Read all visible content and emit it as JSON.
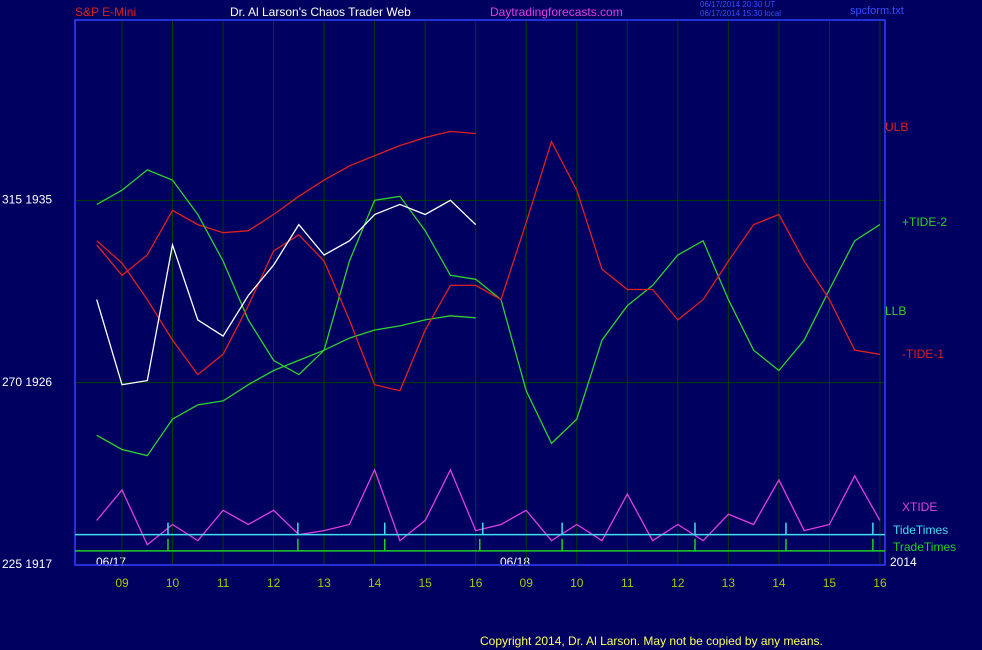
{
  "chart_data": {
    "type": "line",
    "title": "Dr. Al Larson's Chaos Trader Web",
    "instrument": "S&P E-Mini",
    "website": "Daytradingforecasts.com",
    "timestamps": [
      "06/17/2014 20:30 UT",
      "06/17/2014 15:30 local"
    ],
    "file_name": "spcform.txt",
    "copyright": "Copyright 2014, Dr. Al Larson. May not be copied by any means.",
    "date_labels": [
      "06/17",
      "06/18",
      "2014"
    ],
    "xlim": [
      8.07,
      24.1
    ],
    "xticks": [
      {
        "value": 9,
        "label": "09"
      },
      10,
      11,
      12,
      13,
      14,
      15,
      16,
      {
        "value": 17,
        "label": "09"
      },
      {
        "value": 18,
        "label": "10"
      },
      {
        "value": 19,
        "label": "11"
      },
      {
        "value": 20,
        "label": "12"
      },
      {
        "value": 21,
        "label": "13"
      },
      {
        "value": 22,
        "label": "14"
      },
      {
        "value": 23,
        "label": "15"
      },
      {
        "value": 24,
        "label": "16"
      }
    ],
    "ylim": [
      1917,
      1943.9
    ],
    "yticks": [
      {
        "value": 1917,
        "label": "225  1917"
      },
      {
        "value": 1926,
        "label": "270  1926"
      },
      {
        "value": 1935,
        "label": "315  1935"
      }
    ],
    "grid": true,
    "x": [
      8.5,
      9,
      9.5,
      10,
      10.5,
      11,
      11.5,
      12,
      12.5,
      13,
      13.5,
      14,
      14.5,
      15,
      15.5,
      16,
      16.5,
      17,
      17.5,
      18,
      18.5,
      19,
      19.5,
      20,
      20.5,
      21,
      21.5,
      22,
      22.5,
      23,
      23.5,
      24
    ],
    "series": [
      {
        "name": "ULB",
        "color": "#e02020",
        "values": [
          1932.8,
          1931.3,
          1932.3,
          1934.5,
          1933.8,
          1933.4,
          1933.5,
          1934.3,
          1935.2,
          1936.0,
          1936.7,
          1937.2,
          1937.7,
          1938.1,
          1938.4,
          1938.3,
          null,
          null,
          null,
          null,
          null,
          null,
          null,
          null,
          null,
          null,
          null,
          null,
          null,
          null,
          null,
          null
        ]
      },
      {
        "name": "+TIDE-2",
        "color": "#30d030",
        "values": [
          1934.8,
          1935.5,
          1936.5,
          1936.0,
          1934.3,
          1932.0,
          1929.1,
          1927.1,
          1926.4,
          1927.6,
          1932.0,
          1935.0,
          1935.2,
          1933.5,
          1931.3,
          1931.1,
          1930.1,
          1925.6,
          1923.0,
          1924.2,
          1928.1,
          1929.8,
          1930.8,
          1932.3,
          1933.0,
          1930.1,
          1927.6,
          1926.6,
          1928.1,
          1930.6,
          1933.0,
          1933.8
        ]
      },
      {
        "name": "LLB",
        "color": "#30d030",
        "values": [
          1923.4,
          1922.7,
          1922.4,
          1924.2,
          1924.9,
          1925.1,
          1925.9,
          1926.6,
          1927.1,
          1927.6,
          1928.2,
          1928.6,
          1928.8,
          1929.1,
          1929.3,
          1929.2,
          null,
          null,
          null,
          null,
          null,
          null,
          null,
          null,
          null,
          null,
          null,
          null,
          null,
          null,
          null,
          null
        ]
      },
      {
        "name": "-TIDE-1",
        "color": "#e02020",
        "values": [
          1933.0,
          1931.9,
          1930.1,
          1928.1,
          1926.4,
          1927.4,
          1929.8,
          1932.5,
          1933.3,
          1932.0,
          1929.1,
          1925.9,
          1925.6,
          1928.6,
          1930.8,
          1930.8,
          1930.1,
          1933.9,
          1937.9,
          1935.5,
          1931.6,
          1930.6,
          1930.6,
          1929.1,
          1930.1,
          1932.0,
          1933.8,
          1934.3,
          1932.0,
          1930.1,
          1927.6,
          1927.4
        ]
      },
      {
        "name": "XTIDE",
        "color": "#e040e0",
        "values": [
          1919.2,
          1920.7,
          1918.0,
          1919.0,
          1918.2,
          1919.7,
          1919.0,
          1919.7,
          1918.5,
          1918.7,
          1919.0,
          1921.7,
          1918.2,
          1919.2,
          1921.7,
          1918.7,
          1919.0,
          1919.7,
          1918.2,
          1919.0,
          1918.2,
          1920.5,
          1918.2,
          1919.0,
          1918.2,
          1919.5,
          1919.0,
          1921.2,
          1918.7,
          1919.0,
          1921.4,
          1919.2
        ]
      },
      {
        "color": "#ffffff",
        "values": [
          1930.1,
          1925.9,
          1926.1,
          1932.8,
          1929.1,
          1928.3,
          1930.3,
          1931.8,
          1933.8,
          1932.3,
          1933.0,
          1934.3,
          1934.8,
          1934.3,
          1935.0,
          1933.8,
          null,
          null,
          null,
          null,
          null,
          null,
          null,
          null,
          null,
          null,
          null,
          null,
          null,
          null,
          null,
          null
        ]
      }
    ],
    "events": [
      {
        "name": "TideTimes",
        "color": "#40e0f0",
        "level": 1918.5,
        "times": [
          9.91,
          12.48,
          14.2,
          16.14,
          17.71,
          20.34,
          22.14,
          23.86
        ]
      },
      {
        "name": "TradeTimes",
        "color": "#20d020",
        "level": 1917.7,
        "times": [
          9.91,
          12.48,
          14.2,
          16.08,
          17.71,
          20.34,
          22.14,
          23.86
        ]
      }
    ]
  }
}
